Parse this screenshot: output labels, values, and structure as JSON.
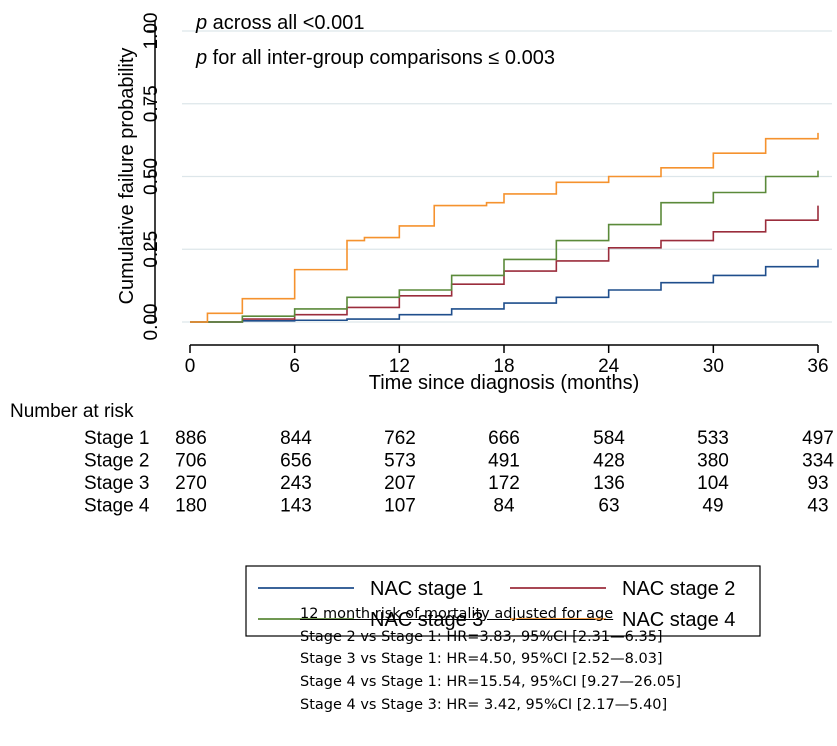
{
  "annotations": {
    "p_symbol": "p",
    "p_all_text": " across all <0.001",
    "p_pairs_text": " for all inter-group comparisons ≤ 0.003"
  },
  "risk_table": {
    "title": "Number at risk",
    "rows": [
      {
        "label": "Stage 1",
        "values": [
          "886",
          "844",
          "762",
          "666",
          "584",
          "533",
          "497"
        ]
      },
      {
        "label": "Stage 2",
        "values": [
          "706",
          "656",
          "573",
          "491",
          "428",
          "380",
          "334"
        ]
      },
      {
        "label": "Stage 3",
        "values": [
          "270",
          "243",
          "207",
          "172",
          "136",
          "104",
          "93"
        ]
      },
      {
        "label": "Stage 4",
        "values": [
          "180",
          "143",
          "107",
          "84",
          "63",
          "49",
          "43"
        ]
      }
    ]
  },
  "hr_box": {
    "title": "12 month risk of mortality adjusted for age",
    "lines": [
      "Stage 2 vs Stage 1: HR=3.83, 95%CI [2.31—6.35]",
      "Stage 3 vs Stage 1: HR=4.50, 95%CI [2.52—8.03]",
      "Stage 4 vs Stage 1: HR=15.54, 95%CI [9.27—26.05]",
      "Stage 4 vs Stage 3: HR= 3.42, 95%CI [2.17—5.40]"
    ]
  },
  "chart_data": {
    "type": "line",
    "xlabel": "Time since diagnosis (months)",
    "ylabel": "Cumulative failure probability",
    "xlim": [
      0,
      36
    ],
    "ylim": [
      0,
      1
    ],
    "xticks": [
      0,
      6,
      12,
      18,
      24,
      30,
      36
    ],
    "yticks": [
      "0.00",
      "0.25",
      "0.50",
      "0.75",
      "1.00"
    ],
    "grid": true,
    "legend_position": "bottom",
    "series": [
      {
        "name": "NAC stage 1",
        "color": "#1f4e8c",
        "x": [
          0,
          3,
          6,
          9,
          12,
          15,
          18,
          21,
          24,
          27,
          30,
          33,
          36
        ],
        "y": [
          0,
          0.004,
          0.006,
          0.01,
          0.025,
          0.045,
          0.065,
          0.085,
          0.11,
          0.135,
          0.16,
          0.19,
          0.215
        ]
      },
      {
        "name": "NAC stage 2",
        "color": "#9b2d3c",
        "x": [
          0,
          3,
          6,
          9,
          12,
          15,
          18,
          21,
          24,
          27,
          30,
          33,
          36
        ],
        "y": [
          0,
          0.01,
          0.025,
          0.05,
          0.09,
          0.13,
          0.175,
          0.21,
          0.255,
          0.28,
          0.31,
          0.35,
          0.4
        ]
      },
      {
        "name": "NAC stage 3",
        "color": "#5b8a3a",
        "x": [
          0,
          3,
          6,
          9,
          12,
          15,
          18,
          21,
          24,
          27,
          30,
          33,
          36
        ],
        "y": [
          0,
          0.02,
          0.045,
          0.085,
          0.11,
          0.16,
          0.215,
          0.28,
          0.335,
          0.41,
          0.445,
          0.5,
          0.52
        ]
      },
      {
        "name": "NAC stage 4",
        "color": "#f5922e",
        "x": [
          0,
          1,
          3,
          6,
          9,
          10,
          12,
          14,
          15,
          17,
          18,
          21,
          24,
          27,
          30,
          33,
          36
        ],
        "y": [
          0,
          0.03,
          0.08,
          0.18,
          0.28,
          0.29,
          0.33,
          0.4,
          0.4,
          0.41,
          0.44,
          0.48,
          0.5,
          0.53,
          0.58,
          0.63,
          0.65
        ]
      }
    ]
  }
}
